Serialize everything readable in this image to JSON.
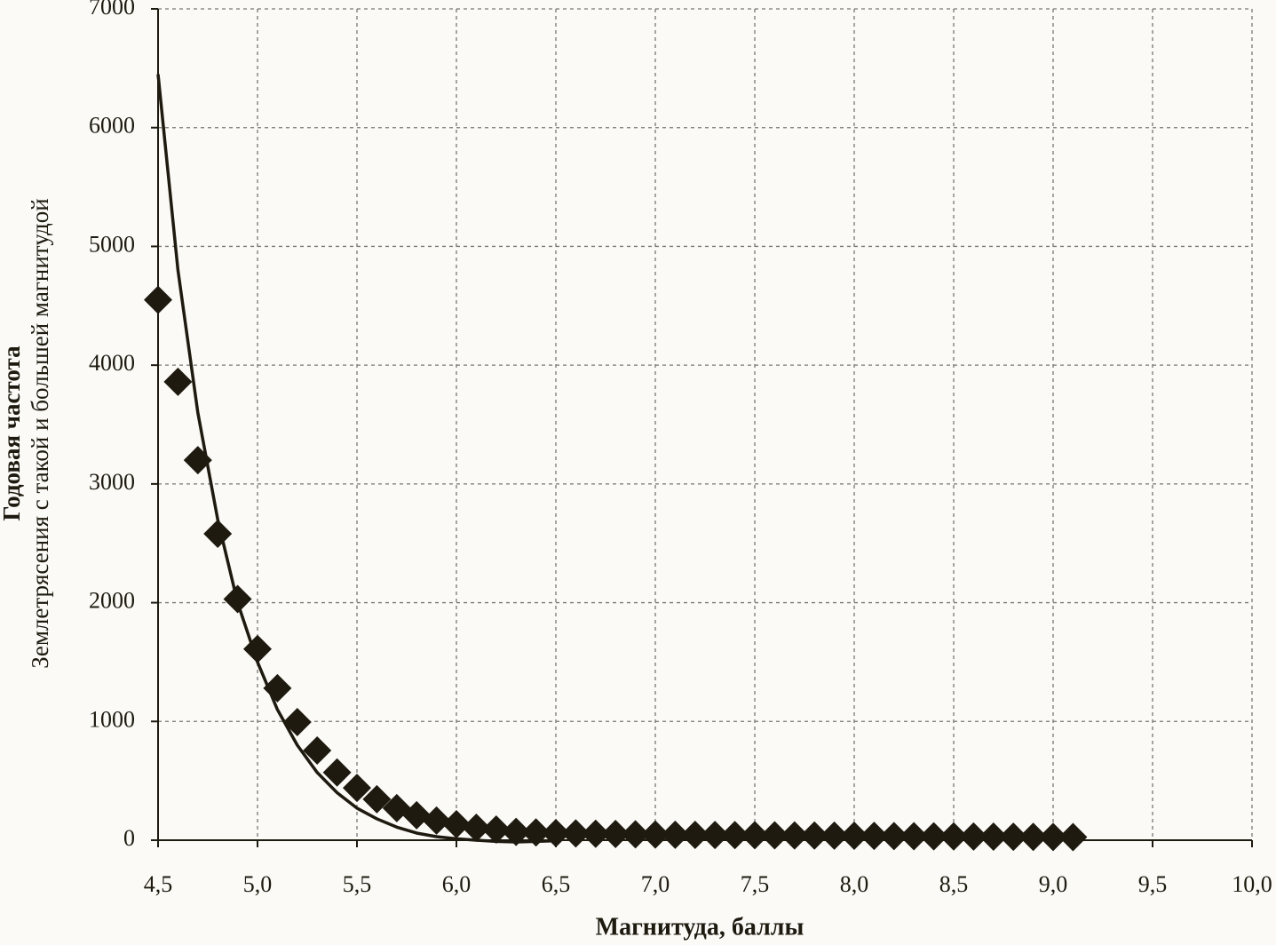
{
  "chart_data": {
    "type": "scatter",
    "x_label": "Магнитуда, баллы",
    "y_label": [
      "Годовая частота",
      "Землетрясения с такой и большей магнитудой"
    ],
    "xlim": [
      4.5,
      10.0
    ],
    "ylim": [
      0,
      7000
    ],
    "xticks": [
      {
        "value": 4.5,
        "label": "4,5"
      },
      {
        "value": 5.0,
        "label": "5,0"
      },
      {
        "value": 5.5,
        "label": "5,5"
      },
      {
        "value": 6.0,
        "label": "6,0"
      },
      {
        "value": 6.5,
        "label": "6,5"
      },
      {
        "value": 7.0,
        "label": "7,0"
      },
      {
        "value": 7.5,
        "label": "7,5"
      },
      {
        "value": 8.0,
        "label": "8,0"
      },
      {
        "value": 8.5,
        "label": "8,5"
      },
      {
        "value": 9.0,
        "label": "9,0"
      },
      {
        "value": 9.5,
        "label": "9,5"
      },
      {
        "value": 10.0,
        "label": "10,0"
      }
    ],
    "yticks": [
      0,
      1000,
      2000,
      3000,
      4000,
      5000,
      6000,
      7000
    ],
    "grid": true,
    "series": [
      {
        "type": "scatter",
        "color": "#1e1a10",
        "x": [
          4.5,
          4.6,
          4.7,
          4.8,
          4.9,
          5.0,
          5.1,
          5.2,
          5.3,
          5.4,
          5.5,
          5.6,
          5.7,
          5.8,
          5.9,
          6.0,
          6.1,
          6.2,
          6.3,
          6.4,
          6.5,
          6.6,
          6.7,
          6.8,
          6.9,
          7.0,
          7.1,
          7.2,
          7.3,
          7.4,
          7.5,
          7.6,
          7.7,
          7.8,
          7.9,
          8.0,
          8.1,
          8.2,
          8.3,
          8.4,
          8.5,
          8.6,
          8.7,
          8.8,
          8.9,
          9.0,
          9.1
        ],
        "values": [
          4550,
          3860,
          3200,
          2580,
          2030,
          1610,
          1280,
          995,
          755,
          570,
          440,
          345,
          270,
          210,
          165,
          135,
          105,
          90,
          70,
          65,
          60,
          57,
          54,
          52,
          50,
          48,
          46,
          45,
          44,
          43,
          42,
          41,
          40,
          39,
          38,
          37,
          36,
          35,
          34,
          33,
          32,
          31,
          30,
          29,
          28,
          27,
          26
        ]
      },
      {
        "type": "line",
        "color": "#1e1a10",
        "x": [
          4.5,
          4.6,
          4.7,
          4.8,
          4.9,
          5.0,
          5.1,
          5.2,
          5.3,
          5.4,
          5.5,
          5.6,
          5.7,
          5.8,
          5.9,
          6.0,
          6.1,
          6.2,
          6.3,
          6.4,
          6.5
        ],
        "values": [
          6450,
          4800,
          3600,
          2700,
          2000,
          1500,
          1100,
          800,
          570,
          400,
          270,
          180,
          110,
          60,
          30,
          12,
          0,
          -10,
          -15,
          -10,
          -5
        ]
      }
    ]
  }
}
